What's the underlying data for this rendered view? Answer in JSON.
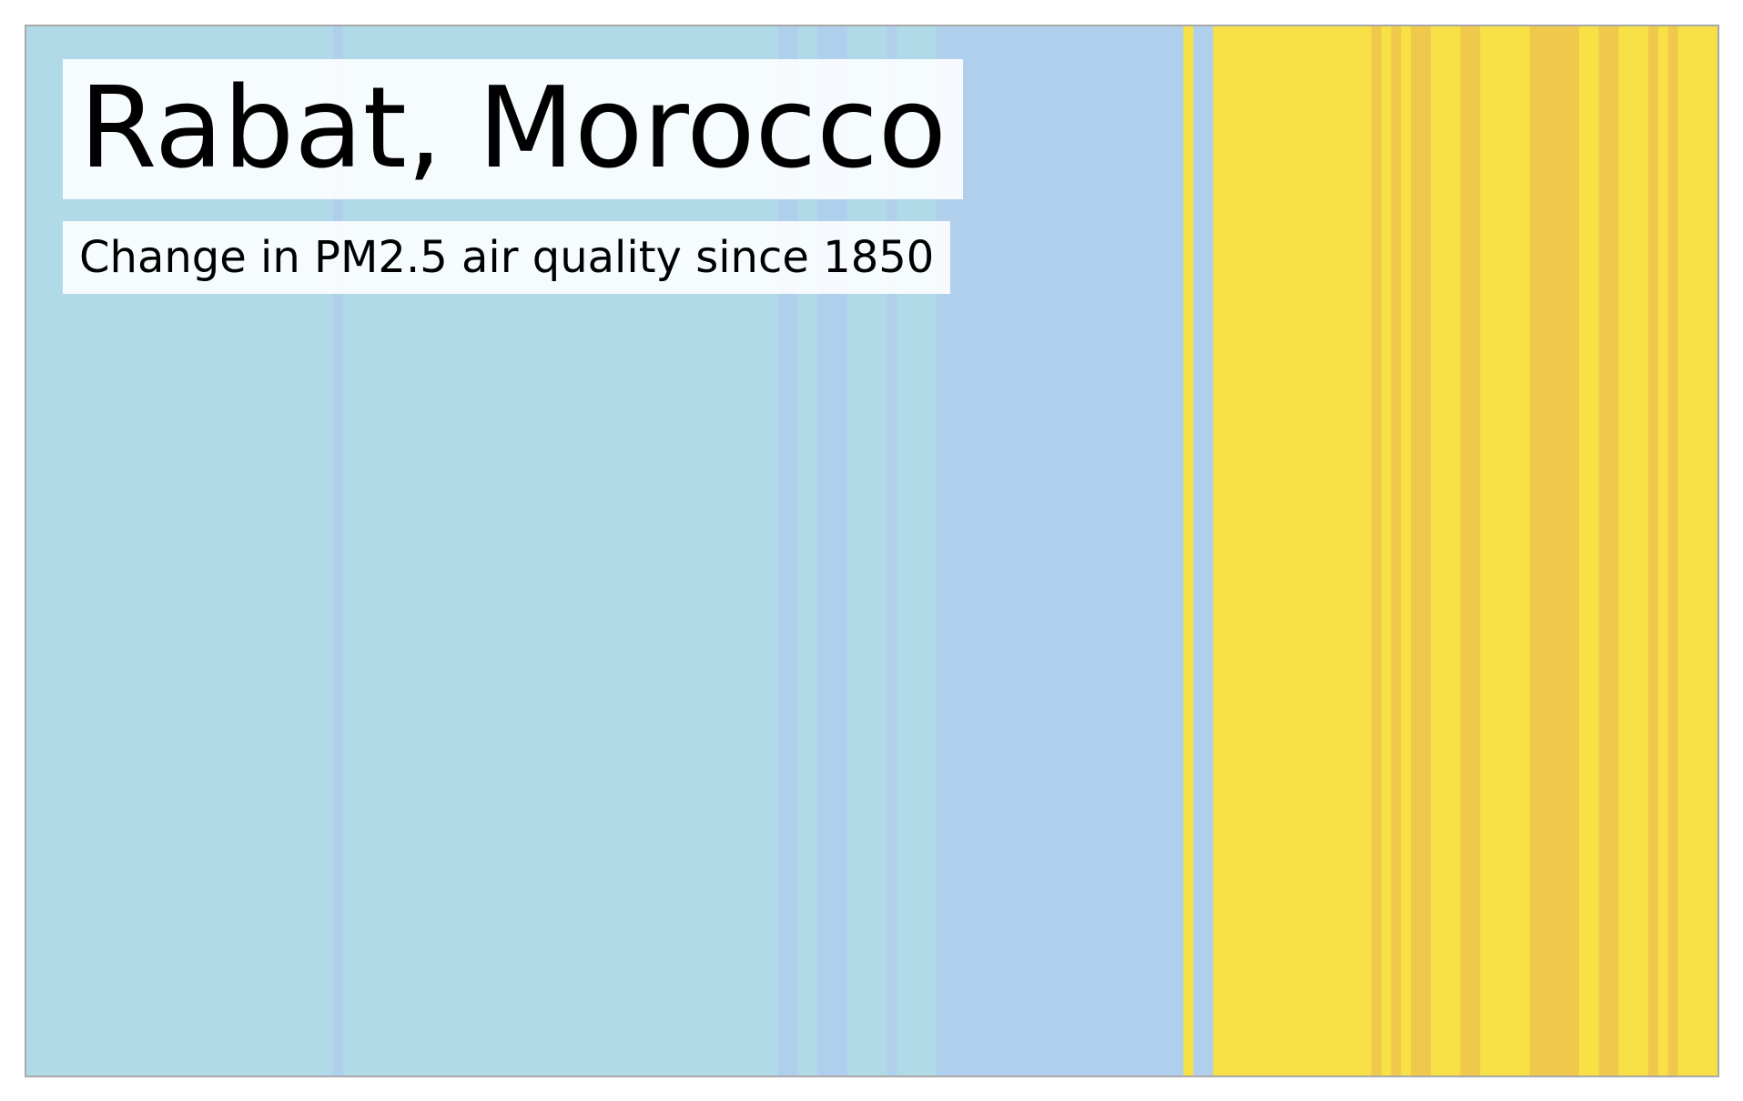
{
  "chart_data": {
    "type": "heatmap",
    "chart_style": "warming-stripes",
    "title": "Rabat, Morocco",
    "subtitle": "Change in PM2.5 air quality since 1850",
    "xlabel": "",
    "ylabel": "",
    "x_start": 1850,
    "x_end": 2021,
    "grid": false,
    "legend": "none",
    "palette": {
      "0": "#b0dae8",
      "1": "#b0cfed",
      "2": "#f8e047",
      "3": "#f0c84c"
    },
    "stripes": [
      {
        "start": 1850,
        "end": 1881,
        "level": 0
      },
      {
        "start": 1881,
        "end": 1882,
        "level": 1
      },
      {
        "start": 1882,
        "end": 1926,
        "level": 0
      },
      {
        "start": 1926,
        "end": 1928,
        "level": 1
      },
      {
        "start": 1928,
        "end": 1930,
        "level": 0
      },
      {
        "start": 1930,
        "end": 1933,
        "level": 1
      },
      {
        "start": 1933,
        "end": 1937,
        "level": 0
      },
      {
        "start": 1937,
        "end": 1938,
        "level": 1
      },
      {
        "start": 1938,
        "end": 1942,
        "level": 0
      },
      {
        "start": 1942,
        "end": 1967,
        "level": 1
      },
      {
        "start": 1967,
        "end": 1968,
        "level": 2
      },
      {
        "start": 1968,
        "end": 1970,
        "level": 1
      },
      {
        "start": 1970,
        "end": 1986,
        "level": 2
      },
      {
        "start": 1986,
        "end": 1987,
        "level": 3
      },
      {
        "start": 1987,
        "end": 1988,
        "level": 2
      },
      {
        "start": 1988,
        "end": 1989,
        "level": 3
      },
      {
        "start": 1989,
        "end": 1990,
        "level": 2
      },
      {
        "start": 1990,
        "end": 1992,
        "level": 3
      },
      {
        "start": 1992,
        "end": 1995,
        "level": 2
      },
      {
        "start": 1995,
        "end": 1997,
        "level": 3
      },
      {
        "start": 1997,
        "end": 2002,
        "level": 2
      },
      {
        "start": 2002,
        "end": 2007,
        "level": 3
      },
      {
        "start": 2007,
        "end": 2009,
        "level": 2
      },
      {
        "start": 2009,
        "end": 2011,
        "level": 3
      },
      {
        "start": 2011,
        "end": 2014,
        "level": 2
      },
      {
        "start": 2014,
        "end": 2015,
        "level": 3
      },
      {
        "start": 2015,
        "end": 2016,
        "level": 2
      },
      {
        "start": 2016,
        "end": 2017,
        "level": 3
      },
      {
        "start": 2017,
        "end": 2021,
        "level": 2
      }
    ]
  }
}
